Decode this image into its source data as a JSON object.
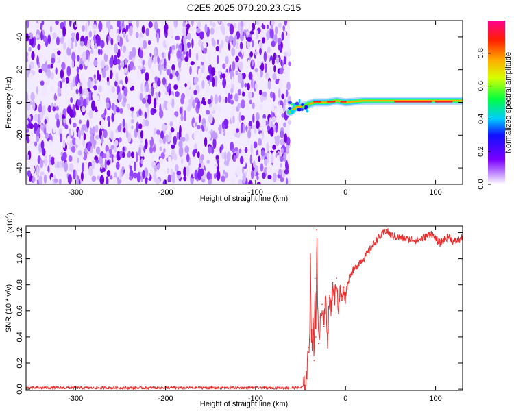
{
  "title": "C2E5.2025.070.20.23.G15",
  "chart_data": [
    {
      "type": "heatmap",
      "xlabel": "Height of straight line (km)",
      "ylabel": "Frequency (Hz)",
      "xlim": [
        -355,
        130
      ],
      "ylim": [
        -50,
        50
      ],
      "x_ticks": [
        -300,
        -200,
        -100,
        0,
        100
      ],
      "x_tick_labels": [
        "-300",
        "-200",
        "-100",
        "0",
        "100"
      ],
      "y_ticks": [
        -40,
        -20,
        0,
        20,
        40
      ],
      "y_tick_labels": [
        "-40",
        "-20",
        "0",
        "20",
        "40"
      ],
      "noise_region_x": [
        -355,
        -62
      ],
      "signal_track": [
        {
          "x": -62,
          "y": -6
        },
        {
          "x": -55,
          "y": -3
        },
        {
          "x": -45,
          "y": -2
        },
        {
          "x": -35,
          "y": 0
        },
        {
          "x": -20,
          "y": 0
        },
        {
          "x": -10,
          "y": 1
        },
        {
          "x": 0,
          "y": 0
        },
        {
          "x": 20,
          "y": 1
        },
        {
          "x": 50,
          "y": 1
        },
        {
          "x": 80,
          "y": 1
        },
        {
          "x": 130,
          "y": 1
        }
      ],
      "grid": false,
      "colorbar": {
        "label": "Normalized spectral amplitude",
        "range": [
          0,
          1
        ],
        "ticks": [
          0.0,
          0.2,
          0.4,
          0.6,
          0.8
        ],
        "tick_labels": [
          "0.0",
          "0.2",
          "0.4",
          "0.6",
          "0.8"
        ]
      }
    },
    {
      "type": "line",
      "xlabel": "Height of straight line (km)",
      "ylabel": "SNR (10 * v/v)",
      "scale_label": "(x10",
      "scale_exponent": "4",
      "scale_close": ")",
      "xlim": [
        -355,
        130
      ],
      "ylim": [
        -0.01,
        1.25
      ],
      "x_ticks": [
        -300,
        -200,
        -100,
        0,
        100
      ],
      "x_tick_labels": [
        "-300",
        "-200",
        "-100",
        "0",
        "100"
      ],
      "y_ticks": [
        0.0,
        0.2,
        0.4,
        0.6,
        0.8,
        1.0,
        1.2
      ],
      "y_tick_labels": [
        "0.0",
        "0.2",
        "0.4",
        "0.6",
        "0.8",
        "1.0",
        "1.2"
      ],
      "grid": false,
      "series": [
        {
          "color": "#e83030",
          "x": [
            -355,
            -300,
            -200,
            -100,
            -50,
            -45,
            -43,
            -41,
            -40,
            -39,
            -38,
            -37,
            -36,
            -35,
            -34,
            -33,
            -32,
            -31,
            -30,
            -28,
            -26,
            -24,
            -22,
            -20,
            -18,
            -16,
            -14,
            -12,
            -10,
            -8,
            -6,
            -4,
            -2,
            0,
            2,
            5,
            10,
            15,
            20,
            25,
            30,
            35,
            40,
            45,
            50,
            60,
            70,
            80,
            90,
            95,
            100,
            105,
            110,
            115,
            120,
            125,
            130
          ],
          "y": [
            0.01,
            0.01,
            0.01,
            0.01,
            0.01,
            0.03,
            0.12,
            0.32,
            0.38,
            1.0,
            0.45,
            0.32,
            0.5,
            0.22,
            0.85,
            0.4,
            1.22,
            0.62,
            0.35,
            0.55,
            0.65,
            0.48,
            0.72,
            0.38,
            0.7,
            0.6,
            0.82,
            0.7,
            0.85,
            0.6,
            0.75,
            0.68,
            0.78,
            0.72,
            0.8,
            0.88,
            0.92,
            0.97,
            1.0,
            1.05,
            1.1,
            1.15,
            1.18,
            1.22,
            1.18,
            1.16,
            1.15,
            1.14,
            1.17,
            1.2,
            1.15,
            1.12,
            1.15,
            1.17,
            1.13,
            1.14,
            1.16
          ]
        }
      ]
    }
  ]
}
